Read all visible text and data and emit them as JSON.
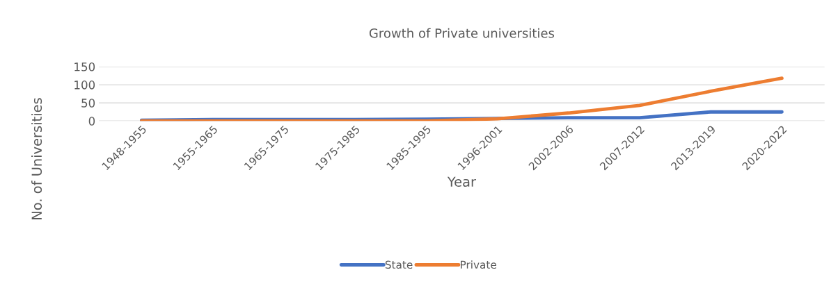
{
  "chart_data": {
    "type": "line",
    "title": "Growth of Private universities",
    "xlabel": "Year",
    "ylabel": "No. of Universities",
    "categories": [
      "1948-1955",
      "1955-1965",
      "1965-1975",
      "1975-1985",
      "1985-1995",
      "1996-2001",
      "2002-2006",
      "2007-2012",
      "2013-2019",
      "2020-2022"
    ],
    "series": [
      {
        "name": "State",
        "color": "#4472c4",
        "values": [
          2,
          4,
          4,
          4,
          5,
          7,
          9,
          9,
          25,
          25
        ]
      },
      {
        "name": "Private",
        "color": "#ed7d31",
        "values": [
          0,
          0,
          0,
          0,
          0,
          6,
          22,
          43,
          82,
          118
        ]
      }
    ],
    "ylim": [
      0,
      150
    ],
    "yticks": [
      0,
      50,
      100,
      150
    ],
    "grid": "y",
    "legend": "bottom",
    "marker": "none",
    "line_style": "solid"
  }
}
